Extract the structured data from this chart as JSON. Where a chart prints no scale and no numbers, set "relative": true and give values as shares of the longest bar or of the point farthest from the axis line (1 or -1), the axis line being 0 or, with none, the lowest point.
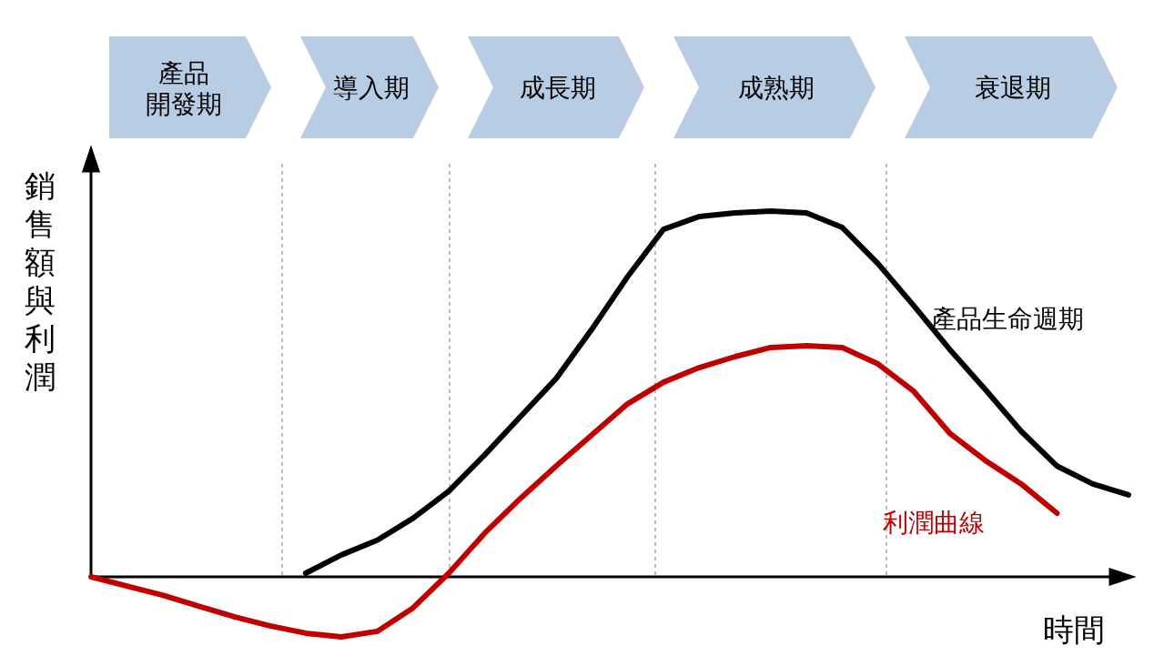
{
  "chart_data": {
    "type": "line",
    "relative": true,
    "xlabel": "時間",
    "ylabel": "銷售額與利潤",
    "legend": false,
    "marker": "none",
    "line_style": "solid",
    "categories": [
      null,
      null,
      null,
      null,
      null,
      null,
      null,
      null,
      null,
      null,
      null,
      null,
      null,
      null,
      null,
      null,
      null,
      null,
      null,
      null,
      null,
      null,
      null,
      null,
      null,
      null,
      null,
      null,
      null,
      null
    ],
    "series": [
      {
        "name": "產品生命週期",
        "color": "#000000",
        "values": [
          null,
          null,
          null,
          null,
          null,
          null,
          0.01,
          0.06,
          0.1,
          0.16,
          0.234,
          0.333,
          0.438,
          0.542,
          0.677,
          0.821,
          0.95,
          0.985,
          0.995,
          1.0,
          0.995,
          0.955,
          0.856,
          0.741,
          0.622,
          0.512,
          0.398,
          0.303,
          0.254,
          0.224
        ]
      },
      {
        "name": "利潤曲線",
        "color": "#c00000",
        "values": [
          0,
          -0.025,
          -0.05,
          -0.08,
          -0.109,
          -0.134,
          -0.154,
          -0.164,
          -0.149,
          -0.085,
          0.01,
          0.119,
          0.214,
          0.303,
          0.388,
          0.473,
          0.532,
          0.572,
          0.602,
          0.627,
          0.632,
          0.627,
          0.582,
          0.507,
          0.393,
          0.318,
          0.254,
          0.174,
          null,
          null
        ]
      }
    ],
    "annotations": [
      "產品開發期",
      "導入期",
      "成長期",
      "成熟期",
      "衰退期"
    ]
  }
}
